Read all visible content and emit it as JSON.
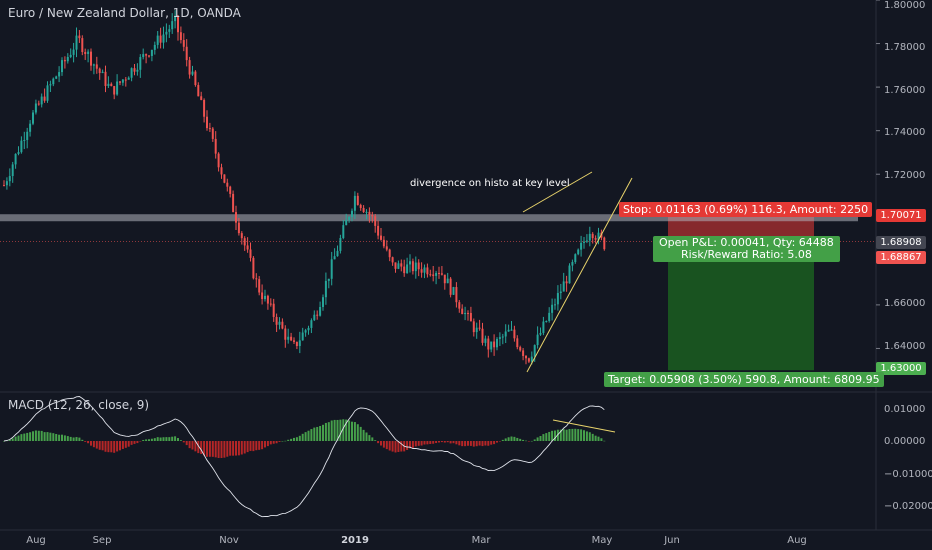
{
  "header": {
    "title": "Euro / New Zealand Dollar, 1D, OANDA"
  },
  "annotation": {
    "text": "divergence on histo at key level"
  },
  "macd": {
    "label": "MACD (12, 26, close, 9)",
    "y_ticks": [
      "0.01000",
      "0.00000",
      "−0.01000",
      "−0.02000"
    ]
  },
  "price_axis": {
    "ticks": [
      "1.80000",
      "1.78000",
      "1.76000",
      "1.74000",
      "1.72000",
      "1.66000",
      "1.64000"
    ],
    "stop_price": "1.70071",
    "last_price": "1.68908",
    "current_price": "1.68867",
    "target_price": "1.63000"
  },
  "time_axis": {
    "labels": [
      "Aug",
      "Sep",
      "Nov",
      "2019",
      "Mar",
      "May",
      "Jun",
      "Aug"
    ]
  },
  "position": {
    "stop_label": "Stop: 0.01163 (0.69%) 116.3, Amount: 2250",
    "pnl_label": "Open P&L: 0.00041, Qty: 64488",
    "rr_label": "Risk/Reward Ratio: 5.08",
    "target_label": "Target: 0.05908 (3.50%) 590.8, Amount: 6809.95"
  },
  "colors": {
    "background": "#131722",
    "up": "#26a69a",
    "down": "#ef5350",
    "macd_up": "#4caf50",
    "macd_down": "#c62828",
    "target_zone": "#1b5e20",
    "stop_zone": "#e53935",
    "level_band": "#b2b5be"
  },
  "chart_data": {
    "type": "candlestick",
    "instrument": "Euro / New Zealand Dollar",
    "ylim": [
      1.62,
      1.8
    ],
    "control_points": [
      [
        "Aug",
        1.715
      ],
      [
        "Aug",
        1.745
      ],
      [
        "Sep",
        1.782
      ],
      [
        "Sep",
        1.758
      ],
      [
        "Sep",
        1.79
      ],
      [
        "Nov",
        1.7
      ],
      [
        "Nov",
        1.668
      ],
      [
        "Nov",
        1.64
      ],
      [
        "Nov",
        1.655
      ],
      [
        "2019",
        1.71
      ],
      [
        "2019",
        1.7
      ],
      [
        "2019",
        1.678
      ],
      [
        "2019",
        1.676
      ],
      [
        "Mar",
        1.652
      ],
      [
        "Mar",
        1.64
      ],
      [
        "Mar",
        1.648
      ],
      [
        "Mar",
        1.635
      ],
      [
        "May",
        1.695
      ],
      [
        "May",
        1.687
      ]
    ],
    "levels": {
      "stop": 1.70071,
      "entry": 1.68908,
      "current": 1.68867,
      "target": 1.63
    }
  }
}
